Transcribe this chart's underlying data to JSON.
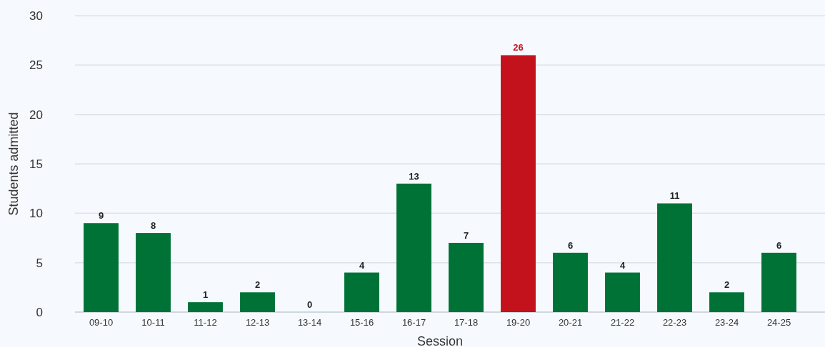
{
  "chart_data": {
    "type": "bar",
    "xlabel": "Session",
    "ylabel": "Students admitted",
    "categories": [
      "09-10",
      "10-11",
      "11-12",
      "12-13",
      "13-14",
      "15-16",
      "16-17",
      "17-18",
      "19-20",
      "20-21",
      "21-22",
      "22-23",
      "23-24",
      "24-25"
    ],
    "values": [
      9,
      8,
      1,
      2,
      0,
      4,
      13,
      7,
      26,
      6,
      4,
      11,
      2,
      6
    ],
    "colors": [
      "#007236",
      "#007236",
      "#007236",
      "#007236",
      "#007236",
      "#007236",
      "#007236",
      "#007236",
      "#c4121c",
      "#007236",
      "#007236",
      "#007236",
      "#007236",
      "#007236"
    ],
    "ylim": [
      0,
      30
    ],
    "yticks": [
      0,
      5,
      10,
      15,
      20,
      25,
      30
    ],
    "grid": "y",
    "data_labels": true
  }
}
